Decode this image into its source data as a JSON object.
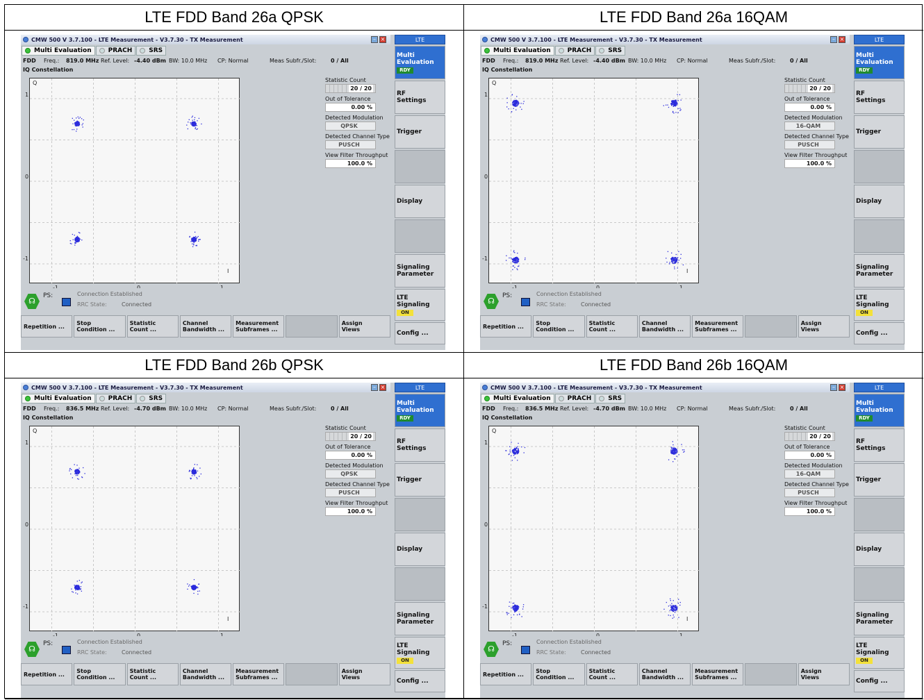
{
  "captions": [
    "LTE FDD Band 26a QPSK",
    "LTE FDD Band 26a 16QAM",
    "LTE FDD Band 26b QPSK",
    "LTE FDD Band 26b 16QAM"
  ],
  "panels": [
    {
      "window_title": "CMW 500 V 3.7.100 - LTE Measurement  - V3.7.30 - TX Measurement",
      "tabs": [
        "Multi Evaluation",
        "PRACH",
        "SRS"
      ],
      "mode": "FDD",
      "freq_label": "Freq.:",
      "freq_value": "819.0 MHz",
      "ref_label": "Ref. Level:",
      "ref_value": "-4.40 dBm",
      "bw": "BW: 10.0 MHz",
      "cp": "CP: Normal",
      "subfr_label": "Meas Subfr./Slot:",
      "subfr_value": "0 / All",
      "section": "IQ Constellation",
      "axis": {
        "y_name": "Q",
        "x_name": "I",
        "y_ticks": [
          "1",
          "0",
          "-1"
        ],
        "x_ticks": [
          "-1",
          "0",
          "1"
        ]
      },
      "stats": {
        "count_label": "Statistic Count",
        "count_value": "20 / 20",
        "tol_label": "Out of Tolerance",
        "tol_value": "0.00  %",
        "mod_label": "Detected Modulation",
        "mod_value": "QPSK",
        "chan_label": "Detected Channel Type",
        "chan_value": "PUSCH",
        "vft_label": "View Filter Throughput",
        "vft_value": "100.0  %"
      },
      "status": {
        "ps": "PS:",
        "conn": "Connection Established",
        "rrc_label": "RRC State:",
        "rrc_value": "Connected"
      },
      "softkeys": [
        "Repetition ...",
        "Stop\nCondition ...",
        "Statistic\nCount ...",
        "Channel\nBandwidth ...",
        "Measurement\nSubframes ...",
        "",
        "Assign\nViews"
      ],
      "side": {
        "header": "LTE",
        "multi": "Multi\nEvaluation",
        "rdy": "RDY",
        "rf": "RF\nSettings",
        "trigger": "Trigger",
        "display": "Display",
        "sigparam": "Signaling\nParameter",
        "ltesig": "LTE\nSignaling",
        "on": "ON",
        "config": "Config ..."
      }
    },
    {
      "window_title": "CMW 500 V 3.7.100 - LTE Measurement  - V3.7.30 - TX Measurement",
      "tabs": [
        "Multi Evaluation",
        "PRACH",
        "SRS"
      ],
      "mode": "FDD",
      "freq_label": "Freq.:",
      "freq_value": "819.0 MHz",
      "ref_label": "Ref. Level:",
      "ref_value": "-4.40 dBm",
      "bw": "BW: 10.0 MHz",
      "cp": "CP: Normal",
      "subfr_label": "Meas Subfr./Slot:",
      "subfr_value": "0 / All",
      "section": "IQ Constellation",
      "axis": {
        "y_name": "Q",
        "x_name": "I",
        "y_ticks": [
          "1",
          "0",
          "-1"
        ],
        "x_ticks": [
          "-1",
          "0",
          "1"
        ]
      },
      "stats": {
        "count_label": "Statistic Count",
        "count_value": "20 / 20",
        "tol_label": "Out of Tolerance",
        "tol_value": "0.00  %",
        "mod_label": "Detected Modulation",
        "mod_value": "16-QAM",
        "chan_label": "Detected Channel Type",
        "chan_value": "PUSCH",
        "vft_label": "View Filter Throughput",
        "vft_value": "100.0  %"
      },
      "status": {
        "ps": "PS:",
        "conn": "Connection Established",
        "rrc_label": "RRC State:",
        "rrc_value": "Connected"
      },
      "softkeys": [
        "Repetition ...",
        "Stop\nCondition ...",
        "Statistic\nCount ...",
        "Channel\nBandwidth ...",
        "Measurement\nSubframes ...",
        "",
        "Assign\nViews"
      ],
      "side": {
        "header": "LTE",
        "multi": "Multi\nEvaluation",
        "rdy": "RDY",
        "rf": "RF\nSettings",
        "trigger": "Trigger",
        "display": "Display",
        "sigparam": "Signaling\nParameter",
        "ltesig": "LTE\nSignaling",
        "on": "ON",
        "config": "Config ..."
      }
    },
    {
      "window_title": "CMW 500 V 3.7.100 - LTE Measurement  - V3.7.30 - TX Measurement",
      "tabs": [
        "Multi Evaluation",
        "PRACH",
        "SRS"
      ],
      "mode": "FDD",
      "freq_label": "Freq.:",
      "freq_value": "836.5 MHz",
      "ref_label": "Ref. Level:",
      "ref_value": "-4.70 dBm",
      "bw": "BW: 10.0 MHz",
      "cp": "CP: Normal",
      "subfr_label": "Meas Subfr./Slot:",
      "subfr_value": "0 / All",
      "section": "IQ Constellation",
      "axis": {
        "y_name": "Q",
        "x_name": "I",
        "y_ticks": [
          "1",
          "0",
          "-1"
        ],
        "x_ticks": [
          "-1",
          "0",
          "1"
        ]
      },
      "stats": {
        "count_label": "Statistic Count",
        "count_value": "20 / 20",
        "tol_label": "Out of Tolerance",
        "tol_value": "0.00  %",
        "mod_label": "Detected Modulation",
        "mod_value": "QPSK",
        "chan_label": "Detected Channel Type",
        "chan_value": "PUSCH",
        "vft_label": "View Filter Throughput",
        "vft_value": "100.0  %"
      },
      "status": {
        "ps": "PS:",
        "conn": "Connection Established",
        "rrc_label": "RRC State:",
        "rrc_value": "Connected"
      },
      "softkeys": [
        "Repetition ...",
        "Stop\nCondition ...",
        "Statistic\nCount ...",
        "Channel\nBandwidth ...",
        "Measurement\nSubframes ...",
        "",
        "Assign\nViews"
      ],
      "side": {
        "header": "LTE",
        "multi": "Multi\nEvaluation",
        "rdy": "RDY",
        "rf": "RF\nSettings",
        "trigger": "Trigger",
        "display": "Display",
        "sigparam": "Signaling\nParameter",
        "ltesig": "LTE\nSignaling",
        "on": "ON",
        "config": "Config ..."
      }
    },
    {
      "window_title": "CMW 500 V 3.7.100 - LTE Measurement  - V3.7.30 - TX Measurement",
      "tabs": [
        "Multi Evaluation",
        "PRACH",
        "SRS"
      ],
      "mode": "FDD",
      "freq_label": "Freq.:",
      "freq_value": "836.5 MHz",
      "ref_label": "Ref. Level:",
      "ref_value": "-4.70 dBm",
      "bw": "BW: 10.0 MHz",
      "cp": "CP: Normal",
      "subfr_label": "Meas Subfr./Slot:",
      "subfr_value": "0 / All",
      "section": "IQ Constellation",
      "axis": {
        "y_name": "Q",
        "x_name": "I",
        "y_ticks": [
          "1",
          "0",
          "-1"
        ],
        "x_ticks": [
          "-1",
          "0",
          "1"
        ]
      },
      "stats": {
        "count_label": "Statistic Count",
        "count_value": "20 / 20",
        "tol_label": "Out of Tolerance",
        "tol_value": "0.00  %",
        "mod_label": "Detected Modulation",
        "mod_value": "16-QAM",
        "chan_label": "Detected Channel Type",
        "chan_value": "PUSCH",
        "vft_label": "View Filter Throughput",
        "vft_value": "100.0  %"
      },
      "status": {
        "ps": "PS:",
        "conn": "Connection Established",
        "rrc_label": "RRC State:",
        "rrc_value": "Connected"
      },
      "softkeys": [
        "Repetition ...",
        "Stop\nCondition ...",
        "Statistic\nCount ...",
        "Channel\nBandwidth ...",
        "Measurement\nSubframes ...",
        "",
        "Assign\nViews"
      ],
      "side": {
        "header": "LTE",
        "multi": "Multi\nEvaluation",
        "rdy": "RDY",
        "rf": "RF\nSettings",
        "trigger": "Trigger",
        "display": "Display",
        "sigparam": "Signaling\nParameter",
        "ltesig": "LTE\nSignaling",
        "on": "ON",
        "config": "Config ..."
      }
    }
  ],
  "colors": {
    "constellation_point": "#2b2bdc",
    "accent": "#2f6fd0",
    "rdy": "#1f8b2e",
    "on": "#f3e13a"
  }
}
